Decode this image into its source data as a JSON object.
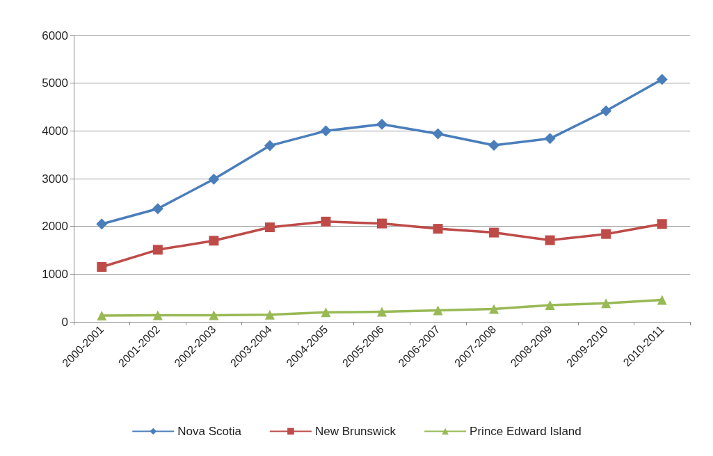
{
  "chart_data": {
    "type": "line",
    "categories": [
      "2000-2001",
      "2001-2002",
      "2002-2003",
      "2003-2004",
      "2004-2005",
      "2005-2006",
      "2006-2007",
      "2007-2008",
      "2008-2009",
      "2009-2010",
      "2010-2011"
    ],
    "series": [
      {
        "name": "Nova Scotia",
        "color": "#4a7ebb",
        "marker": "diamond",
        "values": [
          2050,
          2370,
          2990,
          3690,
          4000,
          4140,
          3940,
          3700,
          3840,
          4420,
          5080
        ]
      },
      {
        "name": "New Brunswick",
        "color": "#be4b48",
        "marker": "square",
        "values": [
          1150,
          1510,
          1700,
          1980,
          2100,
          2060,
          1950,
          1870,
          1710,
          1840,
          2050
        ]
      },
      {
        "name": "Prince Edward Island",
        "color": "#98b954",
        "marker": "triangle",
        "values": [
          130,
          140,
          140,
          150,
          200,
          210,
          240,
          270,
          350,
          390,
          460
        ]
      }
    ],
    "ylim": [
      0,
      6000
    ],
    "yticks": [
      0,
      1000,
      2000,
      3000,
      4000,
      5000,
      6000
    ],
    "grid": "y",
    "legend": "bottom",
    "line_style": "solid"
  }
}
